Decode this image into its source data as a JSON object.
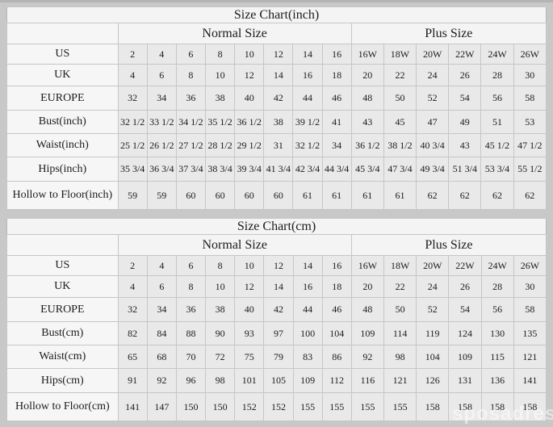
{
  "page": {
    "background_color": "#c8c8c8",
    "table_bg_light": "#f5f5f5",
    "table_bg_data": "#e9e9e9",
    "border_color": "#c6c6c6",
    "watermark_text": "sposadresses"
  },
  "chart_data": [
    {
      "type": "table",
      "title": "Size Chart(inch)",
      "column_groups": [
        {
          "label": "Normal Size",
          "span": 8
        },
        {
          "label": "Plus Size",
          "span": 6
        }
      ],
      "rows": [
        {
          "label": "US",
          "normal": [
            "2",
            "4",
            "6",
            "8",
            "10",
            "12",
            "14",
            "16"
          ],
          "plus": [
            "16W",
            "18W",
            "20W",
            "22W",
            "24W",
            "26W"
          ]
        },
        {
          "label": "UK",
          "normal": [
            "4",
            "6",
            "8",
            "10",
            "12",
            "14",
            "16",
            "18"
          ],
          "plus": [
            "20",
            "22",
            "24",
            "26",
            "28",
            "30"
          ]
        },
        {
          "label": "EUROPE",
          "normal": [
            "32",
            "34",
            "36",
            "38",
            "40",
            "42",
            "44",
            "46"
          ],
          "plus": [
            "48",
            "50",
            "52",
            "54",
            "56",
            "58"
          ]
        },
        {
          "label": "Bust(inch)",
          "normal": [
            "32 1/2",
            "33 1/2",
            "34 1/2",
            "35 1/2",
            "36 1/2",
            "38",
            "39 1/2",
            "41"
          ],
          "plus": [
            "43",
            "45",
            "47",
            "49",
            "51",
            "53"
          ]
        },
        {
          "label": "Waist(inch)",
          "normal": [
            "25 1/2",
            "26 1/2",
            "27 1/2",
            "28 1/2",
            "29 1/2",
            "31",
            "32 1/2",
            "34"
          ],
          "plus": [
            "36 1/2",
            "38 1/2",
            "40 3/4",
            "43",
            "45 1/2",
            "47 1/2"
          ]
        },
        {
          "label": "Hips(inch)",
          "normal": [
            "35 3/4",
            "36 3/4",
            "37 3/4",
            "38 3/4",
            "39 3/4",
            "41 3/4",
            "42 3/4",
            "44 3/4"
          ],
          "plus": [
            "45 3/4",
            "47 3/4",
            "49 3/4",
            "51 3/4",
            "53 3/4",
            "55 1/2"
          ]
        },
        {
          "label": "Hollow to Floor(inch)",
          "normal": [
            "59",
            "59",
            "60",
            "60",
            "60",
            "60",
            "61",
            "61"
          ],
          "plus": [
            "61",
            "61",
            "62",
            "62",
            "62",
            "62"
          ]
        }
      ]
    },
    {
      "type": "table",
      "title": "Size Chart(cm)",
      "column_groups": [
        {
          "label": "Normal Size",
          "span": 8
        },
        {
          "label": "Plus Size",
          "span": 6
        }
      ],
      "rows": [
        {
          "label": "US",
          "normal": [
            "2",
            "4",
            "6",
            "8",
            "10",
            "12",
            "14",
            "16"
          ],
          "plus": [
            "16W",
            "18W",
            "20W",
            "22W",
            "24W",
            "26W"
          ]
        },
        {
          "label": "UK",
          "normal": [
            "4",
            "6",
            "8",
            "10",
            "12",
            "14",
            "16",
            "18"
          ],
          "plus": [
            "20",
            "22",
            "24",
            "26",
            "28",
            "30"
          ]
        },
        {
          "label": "EUROPE",
          "normal": [
            "32",
            "34",
            "36",
            "38",
            "40",
            "42",
            "44",
            "46"
          ],
          "plus": [
            "48",
            "50",
            "52",
            "54",
            "56",
            "58"
          ]
        },
        {
          "label": "Bust(cm)",
          "normal": [
            "82",
            "84",
            "88",
            "90",
            "93",
            "97",
            "100",
            "104"
          ],
          "plus": [
            "109",
            "114",
            "119",
            "124",
            "130",
            "135"
          ]
        },
        {
          "label": "Waist(cm)",
          "normal": [
            "65",
            "68",
            "70",
            "72",
            "75",
            "79",
            "83",
            "86"
          ],
          "plus": [
            "92",
            "98",
            "104",
            "109",
            "115",
            "121"
          ]
        },
        {
          "label": "Hips(cm)",
          "normal": [
            "91",
            "92",
            "96",
            "98",
            "101",
            "105",
            "109",
            "112"
          ],
          "plus": [
            "116",
            "121",
            "126",
            "131",
            "136",
            "141"
          ]
        },
        {
          "label": "Hollow to Floor(cm)",
          "normal": [
            "141",
            "147",
            "150",
            "150",
            "152",
            "152",
            "155",
            "155"
          ],
          "plus": [
            "155",
            "155",
            "158",
            "158",
            "158",
            "158"
          ]
        }
      ]
    }
  ]
}
